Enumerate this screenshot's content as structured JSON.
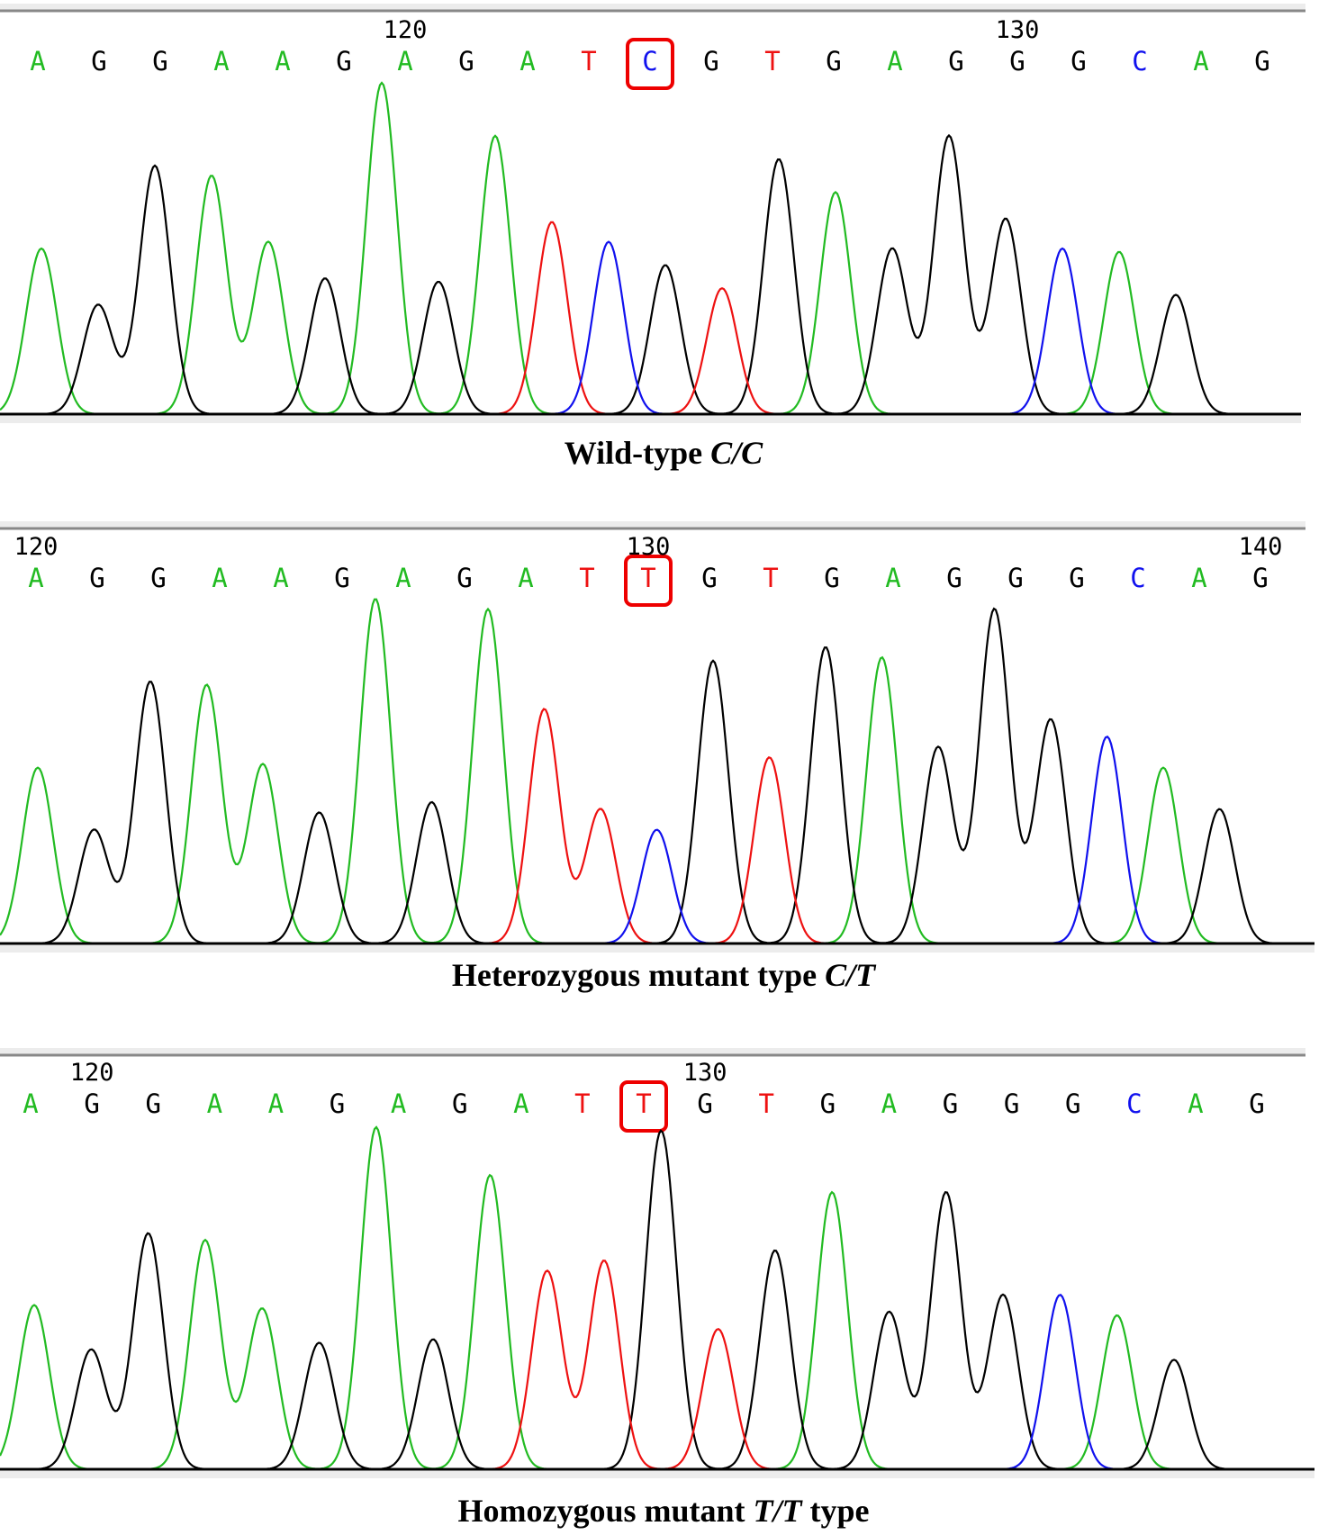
{
  "colors": {
    "A": "#22bb22",
    "G": "#000000",
    "T": "#ee1111",
    "C": "#1111ee",
    "highlight": "#ee0000",
    "frame": "#bbbbbb",
    "baseline": "#000000"
  },
  "chart_data": [
    {
      "type": "line",
      "title": "",
      "label_prefix": "Wild-type ",
      "label_genotype": "C/C",
      "label_suffix": "",
      "sequence": [
        "A",
        "G",
        "G",
        "A",
        "A",
        "G",
        "A",
        "G",
        "A",
        "T",
        "C",
        "G",
        "T",
        "G",
        "A",
        "G",
        "G",
        "G",
        "C",
        "A",
        "G"
      ],
      "highlighted_base": "C",
      "ticks": [
        {
          "label": "120",
          "after_base": 6
        },
        {
          "label": "130",
          "after_base": 16
        }
      ],
      "peaks": [
        {
          "base": "A",
          "height": 0.5
        },
        {
          "base": "G",
          "height": 0.33
        },
        {
          "base": "G",
          "height": 0.75
        },
        {
          "base": "A",
          "height": 0.72
        },
        {
          "base": "A",
          "height": 0.52
        },
        {
          "base": "G",
          "height": 0.41
        },
        {
          "base": "A",
          "height": 1.0
        },
        {
          "base": "G",
          "height": 0.4
        },
        {
          "base": "A",
          "height": 0.84
        },
        {
          "base": "T",
          "height": 0.58
        },
        {
          "base": "C",
          "height": 0.52
        },
        {
          "base": "G",
          "height": 0.45
        },
        {
          "base": "T",
          "height": 0.38
        },
        {
          "base": "G",
          "height": 0.77
        },
        {
          "base": "A",
          "height": 0.67
        },
        {
          "base": "G",
          "height": 0.5
        },
        {
          "base": "G",
          "height": 0.84
        },
        {
          "base": "G",
          "height": 0.59
        },
        {
          "base": "C",
          "height": 0.5
        },
        {
          "base": "A",
          "height": 0.49
        },
        {
          "base": "G",
          "height": 0.36
        }
      ]
    },
    {
      "type": "line",
      "title": "",
      "label_prefix": "Heterozygous mutant type ",
      "label_genotype": "C/T",
      "label_suffix": "",
      "sequence": [
        "A",
        "G",
        "G",
        "A",
        "A",
        "G",
        "A",
        "G",
        "A",
        "T",
        "T",
        "G",
        "T",
        "G",
        "A",
        "G",
        "G",
        "G",
        "C",
        "A",
        "G"
      ],
      "highlighted_base": "T",
      "ticks": [
        {
          "label": "120",
          "after_base": 0
        },
        {
          "label": "130",
          "after_base": 10
        },
        {
          "label": "140",
          "after_base": 20
        }
      ],
      "peaks": [
        {
          "base": "A",
          "height": 0.51
        },
        {
          "base": "G",
          "height": 0.33
        },
        {
          "base": "G",
          "height": 0.76
        },
        {
          "base": "A",
          "height": 0.75
        },
        {
          "base": "A",
          "height": 0.52
        },
        {
          "base": "G",
          "height": 0.38
        },
        {
          "base": "A",
          "height": 1.0
        },
        {
          "base": "G",
          "height": 0.41
        },
        {
          "base": "A",
          "height": 0.97
        },
        {
          "base": "T",
          "height": 0.68
        },
        {
          "base": "T",
          "height": 0.39
        },
        {
          "base": "C",
          "height": 0.33
        },
        {
          "base": "G",
          "height": 0.82
        },
        {
          "base": "T",
          "height": 0.54
        },
        {
          "base": "G",
          "height": 0.86
        },
        {
          "base": "A",
          "height": 0.83
        },
        {
          "base": "G",
          "height": 0.57
        },
        {
          "base": "G",
          "height": 0.97
        },
        {
          "base": "G",
          "height": 0.65
        },
        {
          "base": "C",
          "height": 0.6
        },
        {
          "base": "A",
          "height": 0.51
        },
        {
          "base": "G",
          "height": 0.39
        }
      ]
    },
    {
      "type": "line",
      "title": "",
      "label_prefix": "Homozygous mutant ",
      "label_genotype": "T/T",
      "label_suffix": " type",
      "sequence": [
        "A",
        "G",
        "G",
        "A",
        "A",
        "G",
        "A",
        "G",
        "A",
        "T",
        "T",
        "G",
        "T",
        "G",
        "A",
        "G",
        "G",
        "G",
        "C",
        "A",
        "G"
      ],
      "highlighted_base": "T",
      "ticks": [
        {
          "label": "120",
          "after_base": 1
        },
        {
          "label": "130",
          "after_base": 11
        }
      ],
      "peaks": [
        {
          "base": "A",
          "height": 0.48
        },
        {
          "base": "G",
          "height": 0.35
        },
        {
          "base": "G",
          "height": 0.69
        },
        {
          "base": "A",
          "height": 0.67
        },
        {
          "base": "A",
          "height": 0.47
        },
        {
          "base": "G",
          "height": 0.37
        },
        {
          "base": "A",
          "height": 1.0
        },
        {
          "base": "G",
          "height": 0.38
        },
        {
          "base": "A",
          "height": 0.86
        },
        {
          "base": "T",
          "height": 0.58
        },
        {
          "base": "T",
          "height": 0.61
        },
        {
          "base": "G",
          "height": 0.99
        },
        {
          "base": "T",
          "height": 0.41
        },
        {
          "base": "G",
          "height": 0.64
        },
        {
          "base": "A",
          "height": 0.81
        },
        {
          "base": "G",
          "height": 0.46
        },
        {
          "base": "G",
          "height": 0.81
        },
        {
          "base": "G",
          "height": 0.51
        },
        {
          "base": "C",
          "height": 0.51
        },
        {
          "base": "A",
          "height": 0.45
        },
        {
          "base": "G",
          "height": 0.32
        }
      ]
    }
  ]
}
